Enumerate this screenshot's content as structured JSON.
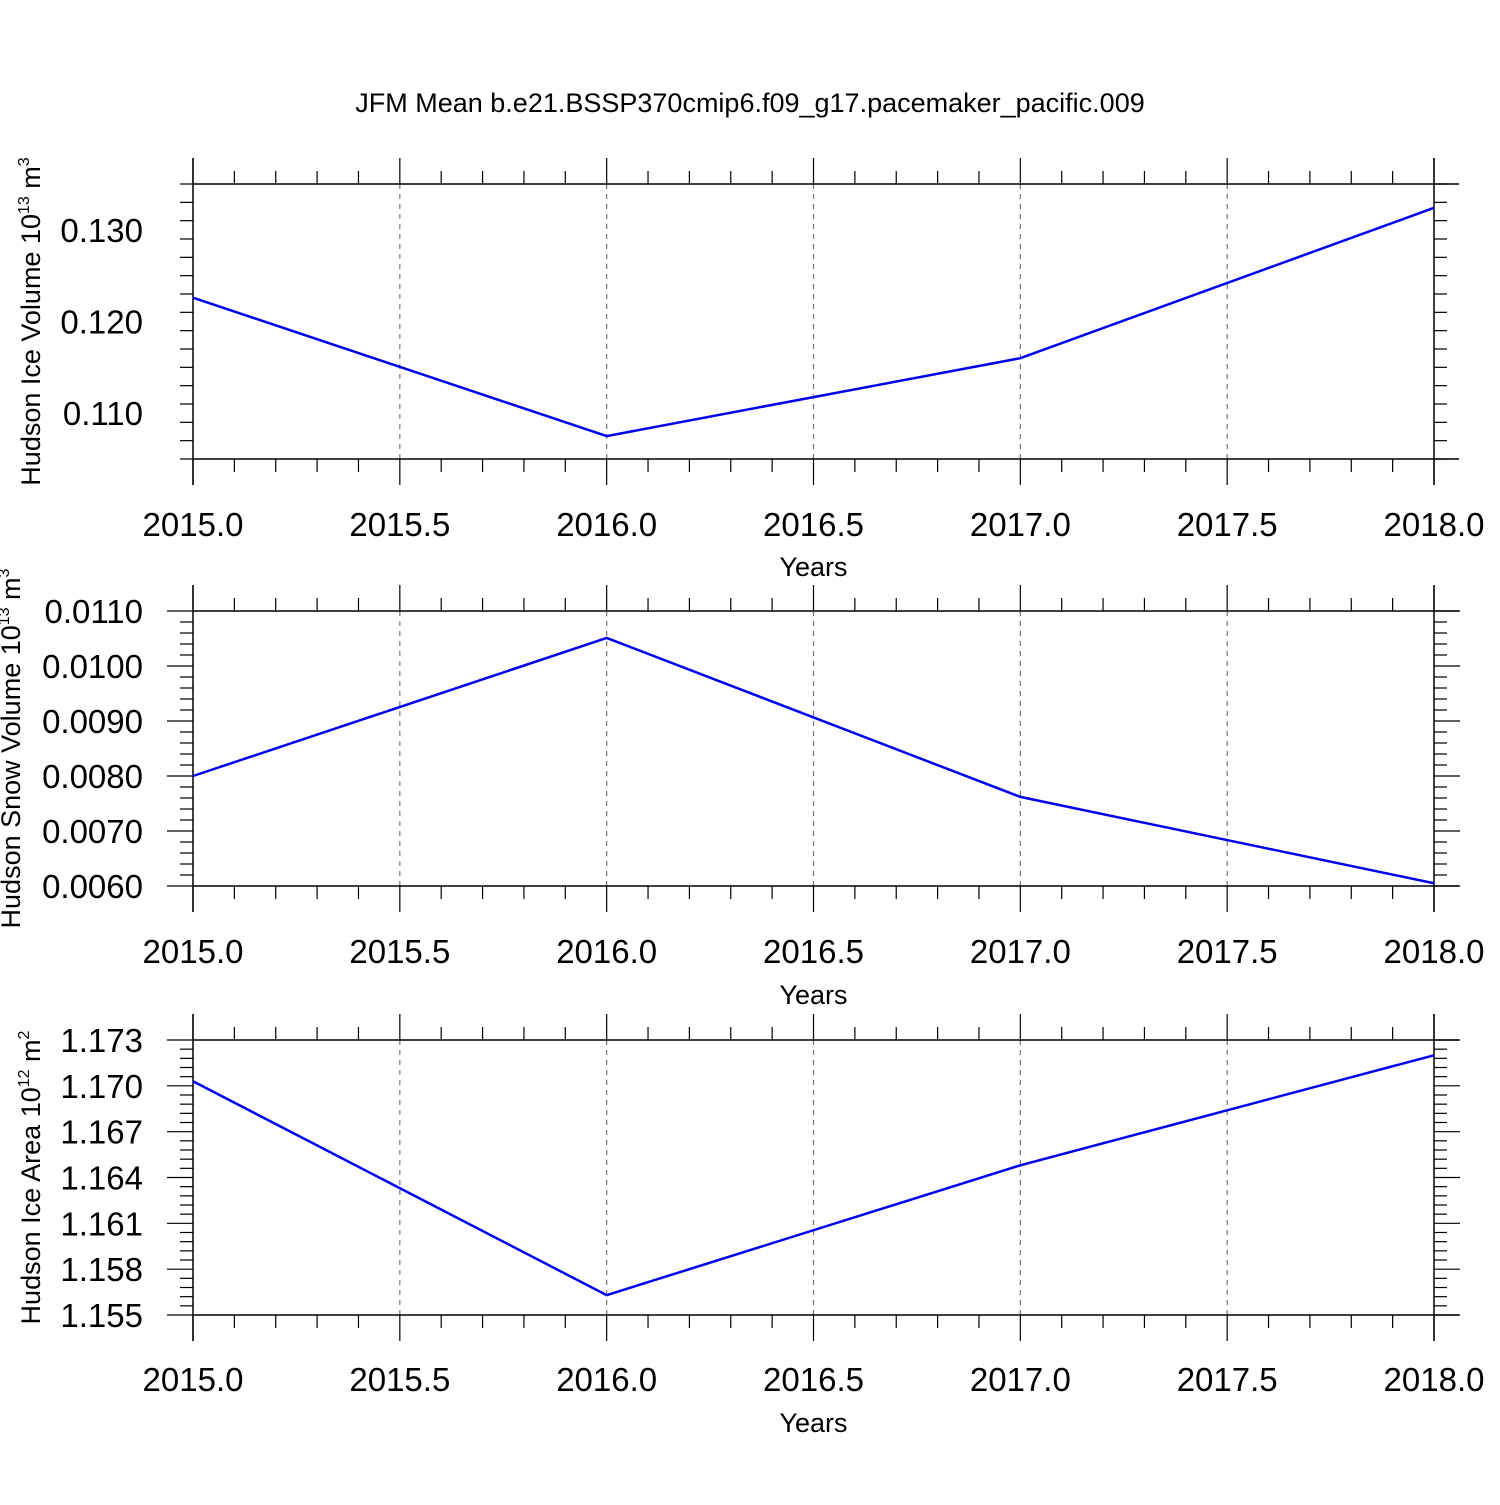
{
  "figure": {
    "title": "JFM Mean b.e21.BSSP370cmip6.f09_g17.pacemaker_pacific.009",
    "line_color": "#0000ee",
    "axis_color": "#000000",
    "grid_color": "#777777"
  },
  "chart_data": [
    {
      "type": "line",
      "x": [
        2015.0,
        2016.0,
        2017.0,
        2018.0
      ],
      "series": [
        {
          "values": [
            0.1226,
            0.1075,
            0.116,
            0.1324
          ]
        }
      ],
      "xlabel": "Years",
      "ylabel": {
        "text": "Hudson Ice Volume 10",
        "sup": "13",
        "unit": " m",
        "unit_sup": "3"
      },
      "xlim": [
        2015.0,
        2018.0
      ],
      "ylim": [
        0.105,
        0.135
      ],
      "xticks": [
        2015.0,
        2015.5,
        2016.0,
        2016.5,
        2017.0,
        2017.5,
        2018.0
      ],
      "xtick_labels": [
        "2015.0",
        "2015.5",
        "2016.0",
        "2016.5",
        "2017.0",
        "2017.5",
        "2018.0"
      ],
      "yticks": [
        0.11,
        0.12,
        0.13
      ],
      "ytick_labels": [
        "0.110",
        "0.120",
        "0.130"
      ],
      "yminor_step": 0.002,
      "grid": "vertical dashed at major x ticks"
    },
    {
      "type": "line",
      "x": [
        2015.0,
        2016.0,
        2017.0,
        2018.0
      ],
      "series": [
        {
          "values": [
            0.008,
            0.01051,
            0.00762,
            0.00605
          ]
        }
      ],
      "xlabel": "Years",
      "ylabel": {
        "text": "Hudson Snow Volume 10",
        "sup": "13",
        "unit": " m",
        "unit_sup": "3"
      },
      "xlim": [
        2015.0,
        2018.0
      ],
      "ylim": [
        0.006,
        0.011
      ],
      "xticks": [
        2015.0,
        2015.5,
        2016.0,
        2016.5,
        2017.0,
        2017.5,
        2018.0
      ],
      "xtick_labels": [
        "2015.0",
        "2015.5",
        "2016.0",
        "2016.5",
        "2017.0",
        "2017.5",
        "2018.0"
      ],
      "yticks": [
        0.006,
        0.007,
        0.008,
        0.009,
        0.01,
        0.011
      ],
      "ytick_labels": [
        "0.0060",
        "0.0070",
        "0.0080",
        "0.0090",
        "0.0100",
        "0.0110"
      ],
      "yminor_step": 0.0002,
      "grid": "vertical dashed at major x ticks"
    },
    {
      "type": "line",
      "x": [
        2015.0,
        2016.0,
        2017.0,
        2018.0
      ],
      "series": [
        {
          "values": [
            1.1703,
            1.1563,
            1.1648,
            1.172
          ]
        }
      ],
      "xlabel": "Years",
      "ylabel": {
        "text": "Hudson Ice Area 10",
        "sup": "12",
        "unit": " m",
        "unit_sup": "2"
      },
      "xlim": [
        2015.0,
        2018.0
      ],
      "ylim": [
        1.155,
        1.173
      ],
      "xticks": [
        2015.0,
        2015.5,
        2016.0,
        2016.5,
        2017.0,
        2017.5,
        2018.0
      ],
      "xtick_labels": [
        "2015.0",
        "2015.5",
        "2016.0",
        "2016.5",
        "2017.0",
        "2017.5",
        "2018.0"
      ],
      "yticks": [
        1.155,
        1.158,
        1.161,
        1.164,
        1.167,
        1.17,
        1.173
      ],
      "ytick_labels": [
        "1.155",
        "1.158",
        "1.161",
        "1.164",
        "1.167",
        "1.170",
        "1.173"
      ],
      "yminor_step": 0.0006,
      "grid": "vertical dashed at major x ticks"
    }
  ]
}
